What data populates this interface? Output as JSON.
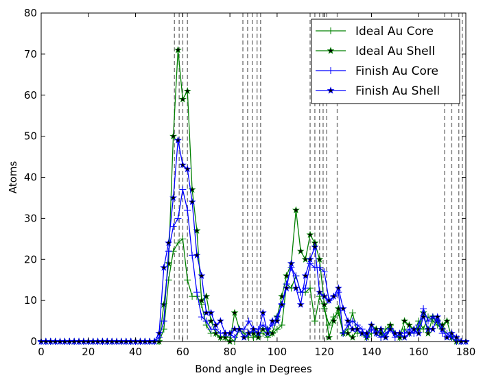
{
  "chart_data": {
    "type": "line",
    "xlabel": "Bond angle in Degrees",
    "ylabel": "Atoms",
    "xlim": [
      0,
      180
    ],
    "ylim": [
      0,
      80
    ],
    "xticks": [
      0,
      20,
      40,
      60,
      80,
      100,
      120,
      140,
      160,
      180
    ],
    "yticks": [
      0,
      10,
      20,
      30,
      40,
      50,
      60,
      70,
      80
    ],
    "grid": false,
    "legend_position": "top-right",
    "reference_lines_x": [
      56.5,
      58.5,
      60.0,
      62.0,
      85.5,
      87.5,
      89.5,
      91.5,
      93.0,
      114.0,
      116.0,
      118.0,
      119.5,
      121.0,
      125.5,
      171.0,
      174.0,
      177.0,
      178.5
    ],
    "series": [
      {
        "name": "Ideal Au Core",
        "color": "#008000",
        "marker": "plus",
        "x": [
          0,
          2,
          4,
          6,
          8,
          10,
          12,
          14,
          16,
          18,
          20,
          22,
          24,
          26,
          28,
          30,
          32,
          34,
          36,
          38,
          40,
          42,
          44,
          46,
          48,
          50,
          52,
          54,
          56,
          58,
          60,
          62,
          64,
          66,
          68,
          70,
          72,
          74,
          76,
          78,
          80,
          82,
          84,
          86,
          88,
          90,
          92,
          94,
          96,
          98,
          100,
          102,
          104,
          106,
          108,
          110,
          112,
          114,
          116,
          118,
          120,
          122,
          124,
          126,
          128,
          130,
          132,
          134,
          136,
          138,
          140,
          142,
          144,
          146,
          148,
          150,
          152,
          154,
          156,
          158,
          160,
          162,
          164,
          166,
          168,
          170,
          172,
          174,
          176,
          178,
          180
        ],
        "values": [
          0,
          0,
          0,
          0,
          0,
          0,
          0,
          0,
          0,
          0,
          0,
          0,
          0,
          0,
          0,
          0,
          0,
          0,
          0,
          0,
          0,
          0,
          0,
          0,
          0,
          0,
          3,
          15,
          22,
          24,
          25,
          15,
          11,
          11,
          9,
          4,
          2,
          2,
          1,
          1,
          1,
          0,
          3,
          2,
          1,
          1,
          2,
          2,
          1,
          2,
          3,
          4,
          14,
          13,
          16,
          12,
          12,
          13,
          5,
          11,
          8,
          4,
          6,
          7,
          2,
          3,
          7,
          2,
          2,
          1,
          2,
          2,
          1,
          3,
          4,
          2,
          1,
          3,
          2,
          2,
          5,
          3,
          6,
          5,
          4,
          3,
          2,
          1,
          0,
          0,
          0
        ]
      },
      {
        "name": "Ideal Au Shell",
        "color": "#008000",
        "marker": "star",
        "x": [
          0,
          2,
          4,
          6,
          8,
          10,
          12,
          14,
          16,
          18,
          20,
          22,
          24,
          26,
          28,
          30,
          32,
          34,
          36,
          38,
          40,
          42,
          44,
          46,
          48,
          50,
          52,
          54,
          56,
          58,
          60,
          62,
          64,
          66,
          68,
          70,
          72,
          74,
          76,
          78,
          80,
          82,
          84,
          86,
          88,
          90,
          92,
          94,
          96,
          98,
          100,
          102,
          104,
          106,
          108,
          110,
          112,
          114,
          116,
          118,
          120,
          122,
          124,
          126,
          128,
          130,
          132,
          134,
          136,
          138,
          140,
          142,
          144,
          146,
          148,
          150,
          152,
          154,
          156,
          158,
          160,
          162,
          164,
          166,
          168,
          170,
          172,
          174,
          176,
          178,
          180
        ],
        "values": [
          0,
          0,
          0,
          0,
          0,
          0,
          0,
          0,
          0,
          0,
          0,
          0,
          0,
          0,
          0,
          0,
          0,
          0,
          0,
          0,
          0,
          0,
          0,
          0,
          0,
          0,
          9,
          19,
          50,
          71,
          59,
          61,
          37,
          27,
          10,
          11,
          5,
          2,
          1,
          1,
          0,
          7,
          3,
          1,
          2,
          2,
          1,
          3,
          3,
          2,
          6,
          11,
          16,
          19,
          32,
          22,
          20,
          26,
          24,
          20,
          9,
          1,
          5,
          8,
          2,
          2,
          1,
          3,
          2,
          1,
          4,
          3,
          2,
          1,
          4,
          2,
          1,
          5,
          4,
          3,
          3,
          7,
          2,
          6,
          5,
          4,
          5,
          1,
          0,
          0,
          0
        ]
      },
      {
        "name": "Finish Au Core",
        "color": "#0000ff",
        "marker": "plus",
        "x": [
          0,
          2,
          4,
          6,
          8,
          10,
          12,
          14,
          16,
          18,
          20,
          22,
          24,
          26,
          28,
          30,
          32,
          34,
          36,
          38,
          40,
          42,
          44,
          46,
          48,
          50,
          52,
          54,
          56,
          58,
          60,
          62,
          64,
          66,
          68,
          70,
          72,
          74,
          76,
          78,
          80,
          82,
          84,
          86,
          88,
          90,
          92,
          94,
          96,
          98,
          100,
          102,
          104,
          106,
          108,
          110,
          112,
          114,
          116,
          118,
          120,
          122,
          124,
          126,
          128,
          130,
          132,
          134,
          136,
          138,
          140,
          142,
          144,
          146,
          148,
          150,
          152,
          154,
          156,
          158,
          160,
          162,
          164,
          166,
          168,
          170,
          172,
          174,
          176,
          178,
          180
        ],
        "values": [
          0,
          0,
          0,
          0,
          0,
          0,
          0,
          0,
          0,
          0,
          0,
          0,
          0,
          0,
          0,
          0,
          0,
          0,
          0,
          0,
          0,
          0,
          0,
          0,
          0,
          1,
          5,
          22,
          28,
          30,
          37,
          32,
          21,
          12,
          6,
          5,
          3,
          3,
          2,
          2,
          2,
          1,
          3,
          3,
          5,
          3,
          3,
          4,
          3,
          4,
          6,
          9,
          14,
          18,
          16,
          12,
          13,
          19,
          18,
          18,
          17,
          10,
          11,
          12,
          2,
          4,
          5,
          4,
          3,
          1,
          3,
          2,
          1,
          2,
          3,
          1,
          2,
          2,
          3,
          2,
          4,
          8,
          5,
          6,
          5,
          2,
          2,
          1,
          0,
          0,
          0
        ]
      },
      {
        "name": "Finish Au Shell",
        "color": "#0000ff",
        "marker": "star",
        "x": [
          0,
          2,
          4,
          6,
          8,
          10,
          12,
          14,
          16,
          18,
          20,
          22,
          24,
          26,
          28,
          30,
          32,
          34,
          36,
          38,
          40,
          42,
          44,
          46,
          48,
          50,
          52,
          54,
          56,
          58,
          60,
          62,
          64,
          66,
          68,
          70,
          72,
          74,
          76,
          78,
          80,
          82,
          84,
          86,
          88,
          90,
          92,
          94,
          96,
          98,
          100,
          102,
          104,
          106,
          108,
          110,
          112,
          114,
          116,
          118,
          120,
          122,
          124,
          126,
          128,
          130,
          132,
          134,
          136,
          138,
          140,
          142,
          144,
          146,
          148,
          150,
          152,
          154,
          156,
          158,
          160,
          162,
          164,
          166,
          168,
          170,
          172,
          174,
          176,
          178,
          180
        ],
        "values": [
          0,
          0,
          0,
          0,
          0,
          0,
          0,
          0,
          0,
          0,
          0,
          0,
          0,
          0,
          0,
          0,
          0,
          0,
          0,
          0,
          0,
          0,
          0,
          0,
          0,
          2,
          18,
          24,
          35,
          49,
          43,
          42,
          34,
          21,
          16,
          7,
          7,
          4,
          5,
          2,
          2,
          3,
          3,
          1,
          2,
          3,
          2,
          7,
          2,
          5,
          5,
          9,
          13,
          19,
          13,
          9,
          16,
          20,
          23,
          12,
          11,
          10,
          11,
          13,
          8,
          5,
          3,
          3,
          2,
          2,
          4,
          2,
          3,
          1,
          3,
          2,
          2,
          1,
          2,
          3,
          2,
          6,
          3,
          3,
          6,
          3,
          1,
          2,
          1,
          0,
          0
        ]
      }
    ]
  }
}
